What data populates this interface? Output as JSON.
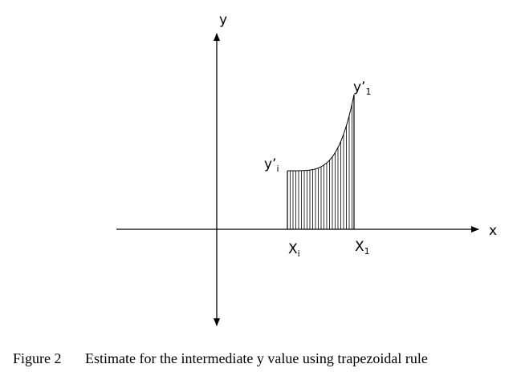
{
  "axes": {
    "y_label": "y",
    "x_label": "x"
  },
  "points": {
    "y_i": {
      "base": "y’",
      "sub": "i"
    },
    "y_1": {
      "base": "y’",
      "sub": "1"
    },
    "x_i": {
      "base": "X",
      "sub": "i"
    },
    "x_1": {
      "base": "X",
      "sub": "1"
    }
  },
  "caption": {
    "number": "Figure 2",
    "text": "Estimate for the intermediate y value using trapezoidal rule"
  }
}
